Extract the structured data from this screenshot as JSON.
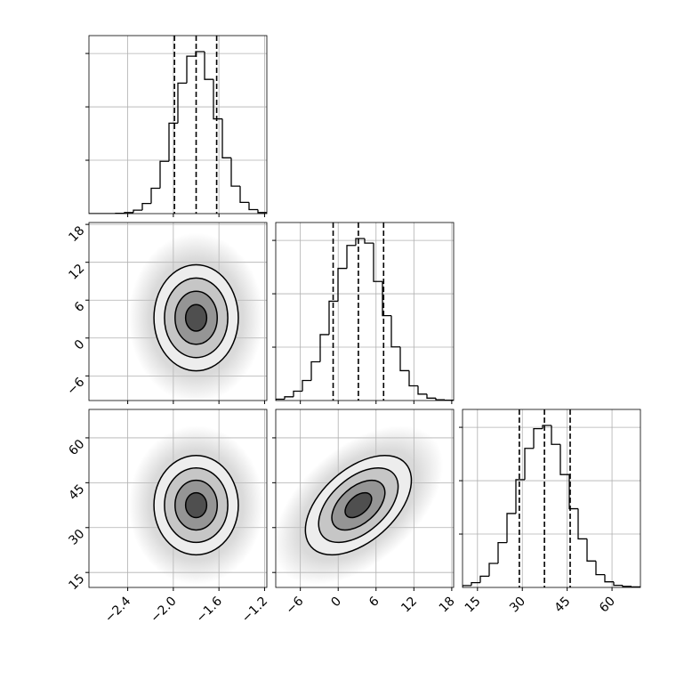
{
  "chart_data": {
    "type": "corner",
    "grid": true,
    "grid_color": "#b0b0b0",
    "line_color": "#000000",
    "density_colors": [
      "#ededed",
      "#c6c6c6",
      "#959595",
      "#4f4f4f"
    ],
    "cloud_color": "#bdbdbd",
    "hist_ylim": [
      0,
      667
    ],
    "hist_yticks": [
      200,
      400,
      600
    ],
    "parameters": [
      {
        "xlim": [
          -2.74,
          -1.18
        ],
        "ticks": [
          {
            "value": -2.4,
            "label": "−2.4"
          },
          {
            "value": -2.0,
            "label": "−2.0"
          },
          {
            "value": -1.6,
            "label": "−1.6"
          },
          {
            "value": -1.2,
            "label": "−1.2"
          }
        ],
        "quantiles": [
          -1.99,
          -1.8,
          -1.62
        ],
        "bins": [
          -2.74,
          -2.662,
          -2.584,
          -2.506,
          -2.428,
          -2.35,
          -2.272,
          -2.194,
          -2.116,
          -2.038,
          -1.96,
          -1.882,
          -1.804,
          -1.726,
          -1.648,
          -1.57,
          -1.492,
          -1.414,
          -1.336,
          -1.258,
          -1.18
        ],
        "counts": [
          0,
          0,
          0,
          1,
          4,
          13,
          38,
          95,
          196,
          339,
          489,
          590,
          607,
          503,
          355,
          209,
          103,
          42,
          15,
          4
        ]
      },
      {
        "xlim": [
          -9.9,
          18.3
        ],
        "ticks": [
          {
            "value": -6,
            "label": "−6"
          },
          0,
          6,
          12,
          18
        ],
        "quantiles": [
          -0.8,
          3.2,
          7.2
        ],
        "bins": [
          -9.9,
          -8.49,
          -7.08,
          -5.67,
          -4.26,
          -2.85,
          -1.44,
          -0.03,
          1.38,
          2.79,
          4.2,
          5.61,
          7.02,
          8.43,
          9.84,
          11.25,
          12.66,
          14.07,
          15.48,
          16.89,
          18.3
        ],
        "counts": [
          5,
          14,
          35,
          75,
          145,
          247,
          372,
          495,
          581,
          607,
          590,
          446,
          318,
          201,
          112,
          55,
          24,
          9,
          3,
          1
        ]
      },
      {
        "xlim": [
          10,
          69.5
        ],
        "ticks": [
          15,
          30,
          45,
          60
        ],
        "quantiles": [
          29,
          37.4,
          46
        ],
        "bins": [
          10,
          12.975,
          15.95,
          18.925,
          21.9,
          24.875,
          27.85,
          30.825,
          33.8,
          36.775,
          39.75,
          42.725,
          45.7,
          48.675,
          51.65,
          54.625,
          57.6,
          60.575,
          63.55,
          66.525,
          69.5
        ],
        "counts": [
          7,
          18,
          42,
          90,
          168,
          277,
          404,
          521,
          595,
          607,
          536,
          423,
          295,
          182,
          99,
          48,
          21,
          8,
          4,
          2
        ]
      }
    ],
    "pairs": [
      {
        "x": 0,
        "y": 1,
        "mean": [
          -1.8,
          3.2
        ],
        "sd": [
          0.185,
          4.2
        ],
        "rho": 0,
        "levels": [
          0.5,
          1,
          1.5,
          2
        ]
      },
      {
        "x": 0,
        "y": 2,
        "mean": [
          -1.8,
          37.5
        ],
        "sd": [
          0.185,
          8.3
        ],
        "rho": 0,
        "levels": [
          0.5,
          1,
          1.5,
          2
        ]
      },
      {
        "x": 1,
        "y": 2,
        "mean": [
          3.2,
          37.5
        ],
        "sd": [
          4.2,
          8.3
        ],
        "rho": 0.5,
        "levels": [
          0.5,
          1,
          1.5,
          2
        ]
      }
    ]
  }
}
